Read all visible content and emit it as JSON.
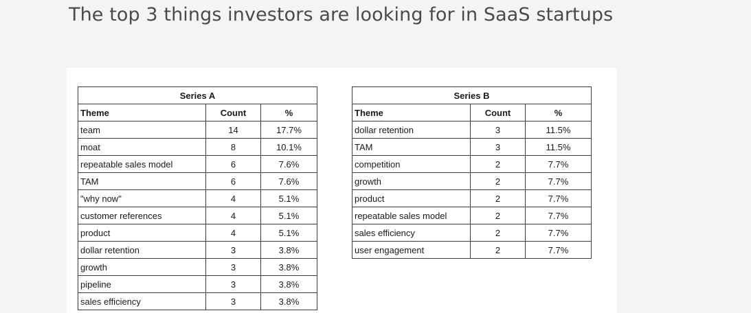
{
  "page": {
    "title": "The top 3 things investors are looking for in SaaS startups"
  },
  "tables": [
    {
      "title": "Series A",
      "headers": [
        "Theme",
        "Count",
        "%"
      ],
      "rows": [
        [
          "team",
          "14",
          "17.7%"
        ],
        [
          "moat",
          "8",
          "10.1%"
        ],
        [
          "repeatable sales model",
          "6",
          "7.6%"
        ],
        [
          "TAM",
          "6",
          "7.6%"
        ],
        [
          "\"why now\"",
          "4",
          "5.1%"
        ],
        [
          "customer references",
          "4",
          "5.1%"
        ],
        [
          "product",
          "4",
          "5.1%"
        ],
        [
          "dollar retention",
          "3",
          "3.8%"
        ],
        [
          "growth",
          "3",
          "3.8%"
        ],
        [
          "pipeline",
          "3",
          "3.8%"
        ],
        [
          "sales efficiency",
          "3",
          "3.8%"
        ]
      ]
    },
    {
      "title": "Series B",
      "headers": [
        "Theme",
        "Count",
        "%"
      ],
      "rows": [
        [
          "dollar retention",
          "3",
          "11.5%"
        ],
        [
          "TAM",
          "3",
          "11.5%"
        ],
        [
          "competition",
          "2",
          "7.7%"
        ],
        [
          "growth",
          "2",
          "7.7%"
        ],
        [
          "product",
          "2",
          "7.7%"
        ],
        [
          "repeatable sales model",
          "2",
          "7.7%"
        ],
        [
          "sales efficiency",
          "2",
          "7.7%"
        ],
        [
          "user engagement",
          "2",
          "7.7%"
        ]
      ]
    }
  ]
}
